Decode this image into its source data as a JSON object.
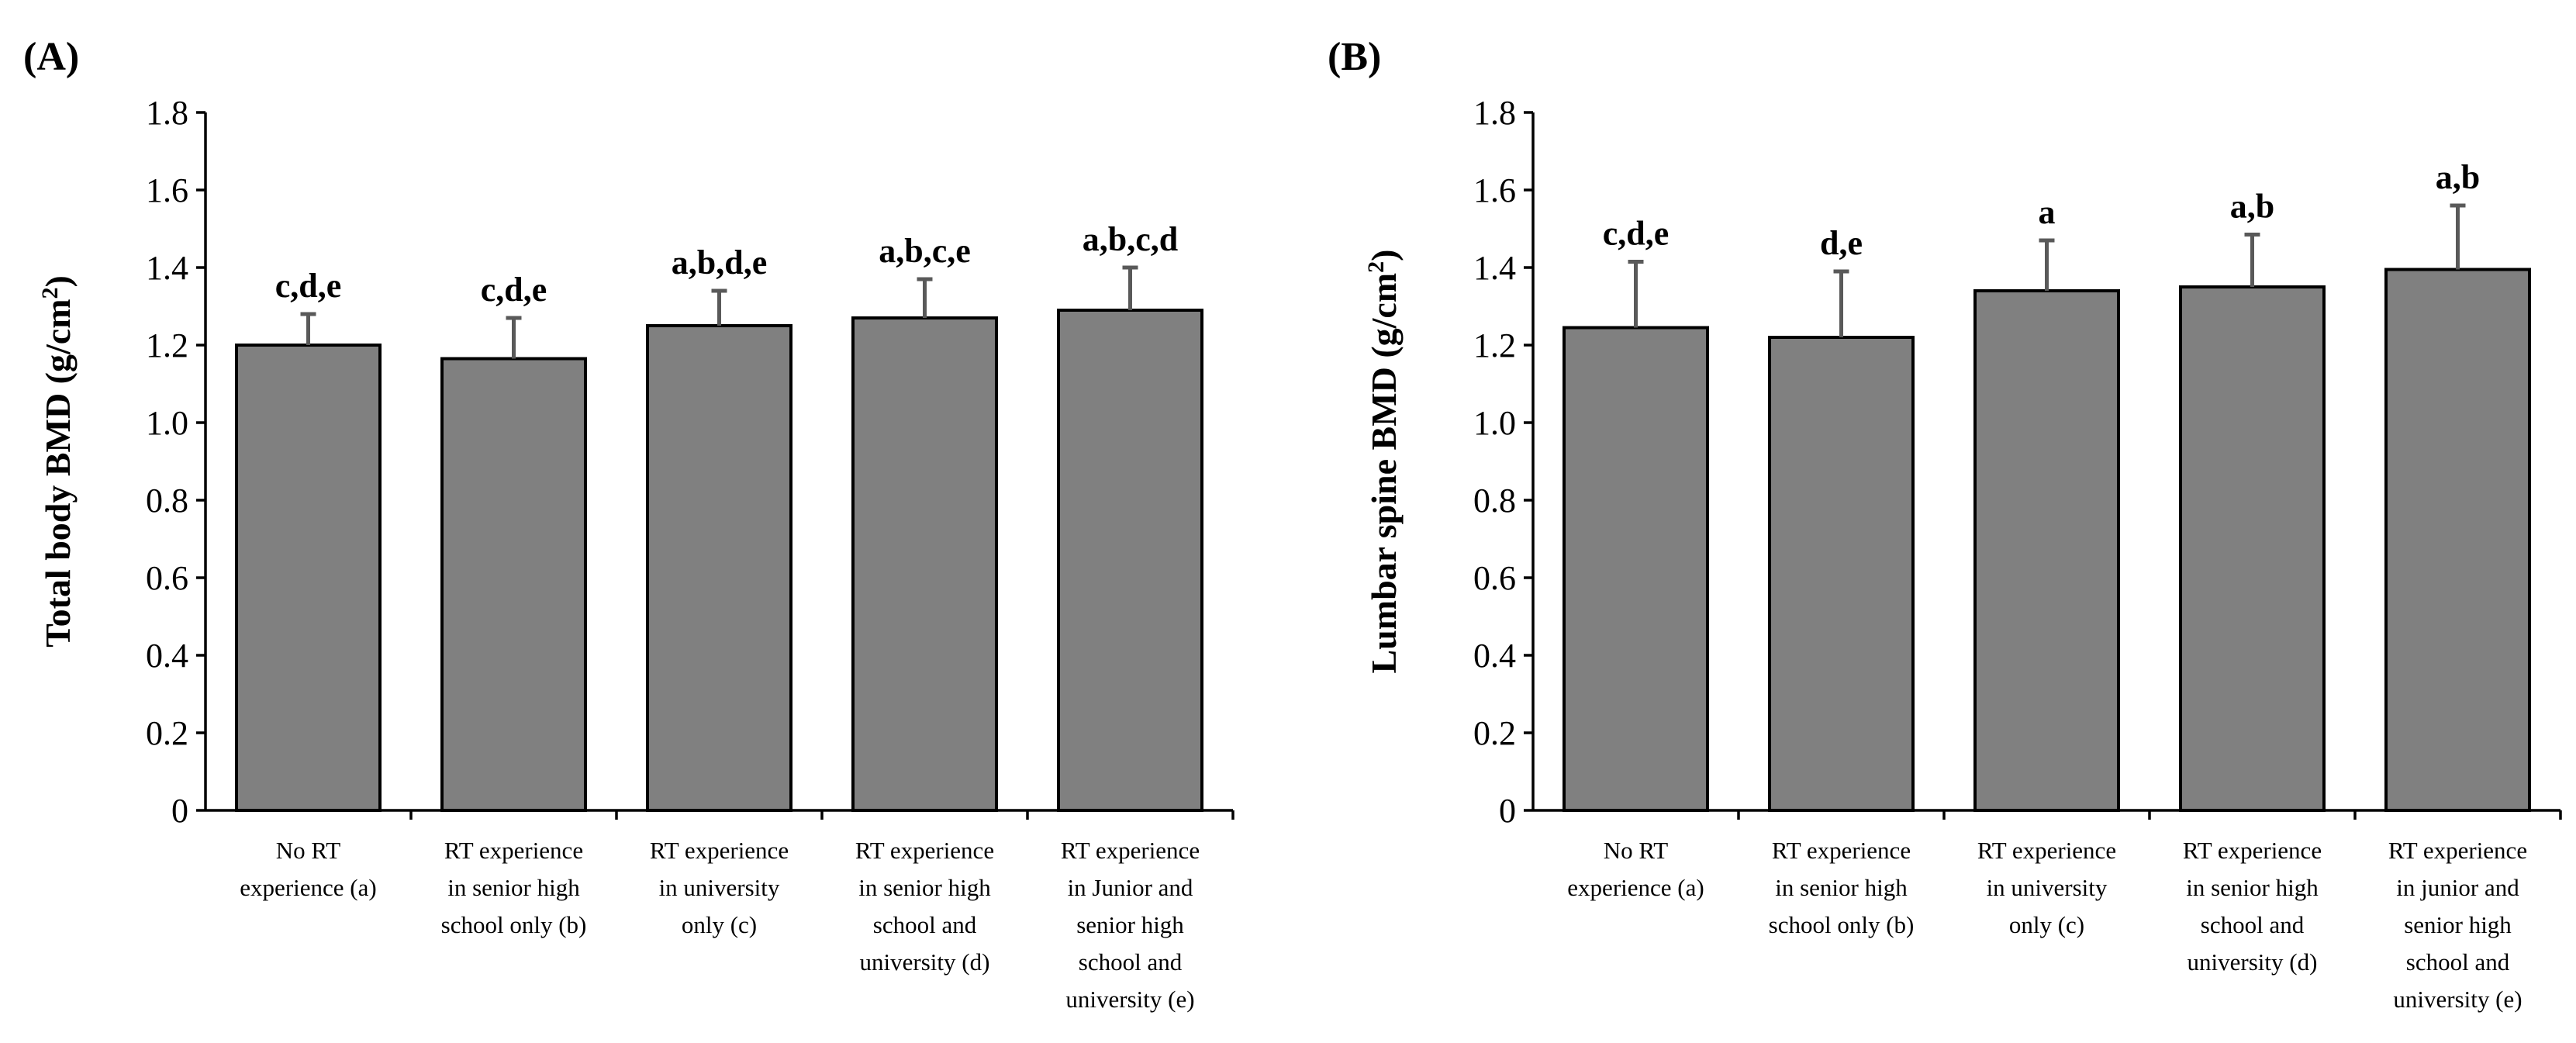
{
  "chart_data": [
    {
      "type": "bar",
      "panel_label": "(A)",
      "ylabel": "Total body BMD (g/cm",
      "ylabel_sup": "2",
      "ylabel_close": ")",
      "ylim": [
        0,
        1.8
      ],
      "yticks": [
        "0",
        "0.2",
        "0.4",
        "0.6",
        "0.8",
        "1.0",
        "1.2",
        "1.4",
        "1.6",
        "1.8"
      ],
      "categories": [
        [
          "No RT",
          "experience (a)"
        ],
        [
          "RT experience",
          "in senior high",
          "school only (b)"
        ],
        [
          "RT experience",
          "in university",
          "only (c)"
        ],
        [
          "RT experience",
          "in senior high",
          "school and",
          "university (d)"
        ],
        [
          "RT experience",
          "in Junior and",
          "senior high",
          "school and",
          "university (e)"
        ]
      ],
      "values": [
        1.2,
        1.165,
        1.25,
        1.27,
        1.29
      ],
      "errors": [
        0.08,
        0.105,
        0.09,
        0.1,
        0.11
      ],
      "significance": [
        "c,d,e",
        "c,d,e",
        "a,b,d,e",
        "a,b,c,e",
        "a,b,c,d"
      ]
    },
    {
      "type": "bar",
      "panel_label": "(B)",
      "ylabel": "Lumbar spine BMD (g/cm",
      "ylabel_sup": "2",
      "ylabel_close": ")",
      "ylim": [
        0,
        1.8
      ],
      "yticks": [
        "0",
        "0.2",
        "0.4",
        "0.6",
        "0.8",
        "1.0",
        "1.2",
        "1.4",
        "1.6",
        "1.8"
      ],
      "categories": [
        [
          "No RT",
          "experience (a)"
        ],
        [
          "RT experience",
          "in senior high",
          "school only (b)"
        ],
        [
          "RT experience",
          "in university",
          "only (c)"
        ],
        [
          "RT experience",
          "in senior high",
          "school and",
          "university (d)"
        ],
        [
          "RT experience",
          "in junior and",
          "senior high",
          "school and",
          "university (e)"
        ]
      ],
      "values": [
        1.245,
        1.22,
        1.34,
        1.35,
        1.395
      ],
      "errors": [
        0.17,
        0.17,
        0.13,
        0.135,
        0.165
      ],
      "significance": [
        "c,d,e",
        "d,e",
        "a",
        "a,b",
        "a,b"
      ]
    }
  ]
}
